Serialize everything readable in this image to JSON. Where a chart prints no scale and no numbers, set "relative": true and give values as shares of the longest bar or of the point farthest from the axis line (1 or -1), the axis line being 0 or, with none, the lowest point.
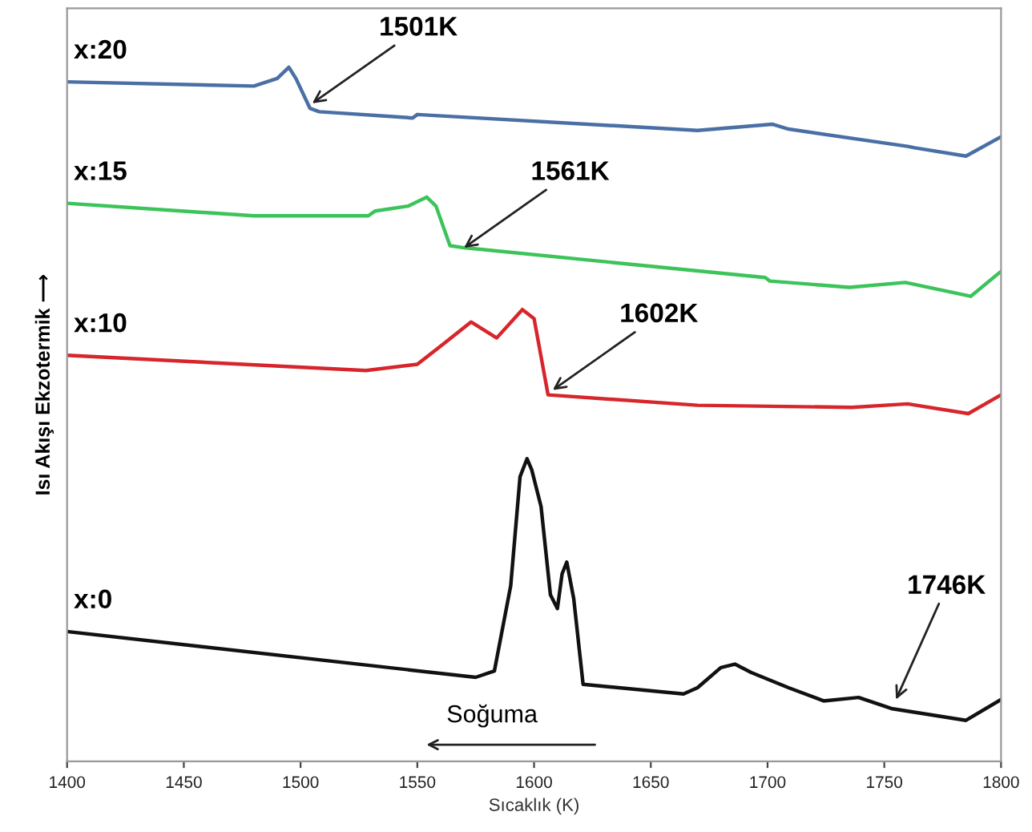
{
  "chart_data": {
    "type": "line",
    "relative": true,
    "xlabel": "Sıcaklık (K)",
    "ylabel": "Isı Akışı Ekzotermik ⟶",
    "xlim": [
      1400,
      1800
    ],
    "xticks": [
      1400,
      1450,
      1500,
      1550,
      1600,
      1650,
      1700,
      1750,
      1800
    ],
    "grid": false,
    "legend": false,
    "marker": "none",
    "line_style": "solid",
    "series": [
      {
        "name": "x:20",
        "color": "#4a6fa5",
        "x": [
          1400,
          1480,
          1490,
          1495,
          1498,
          1504,
          1508,
          1548,
          1550,
          1670,
          1702,
          1709,
          1760,
          1763,
          1785,
          1800
        ],
        "values": [
          0.979,
          0.973,
          0.984,
          1,
          0.984,
          0.941,
          0.936,
          0.927,
          0.932,
          0.909,
          0.918,
          0.911,
          0.886,
          0.884,
          0.872,
          0.9
        ]
      },
      {
        "name": "x:15",
        "color": "#3cc35a",
        "x": [
          1400,
          1480,
          1529,
          1532,
          1546,
          1554,
          1558,
          1564,
          1570,
          1699,
          1701,
          1735,
          1759,
          1787,
          1800
        ],
        "values": [
          0.804,
          0.786,
          0.786,
          0.793,
          0.8,
          0.813,
          0.8,
          0.743,
          0.74,
          0.697,
          0.692,
          0.683,
          0.69,
          0.67,
          0.706
        ]
      },
      {
        "name": "x:10",
        "color": "#d7262b",
        "x": [
          1400,
          1528,
          1550,
          1561,
          1573,
          1584,
          1595,
          1600,
          1606,
          1670,
          1736,
          1760,
          1786,
          1800
        ],
        "values": [
          0.585,
          0.563,
          0.572,
          0.601,
          0.633,
          0.61,
          0.651,
          0.638,
          0.528,
          0.513,
          0.51,
          0.515,
          0.501,
          0.528
        ]
      },
      {
        "name": "x:0",
        "color": "#111111",
        "x": [
          1400,
          1575,
          1583,
          1590,
          1594,
          1597,
          1599,
          1603,
          1607,
          1610,
          1612,
          1614,
          1617,
          1621,
          1664,
          1670,
          1680,
          1686,
          1693,
          1709,
          1724,
          1739,
          1753,
          1785,
          1800
        ],
        "values": [
          0.187,
          0.121,
          0.13,
          0.253,
          0.41,
          0.436,
          0.42,
          0.367,
          0.24,
          0.22,
          0.27,
          0.287,
          0.234,
          0.111,
          0.097,
          0.106,
          0.135,
          0.14,
          0.128,
          0.106,
          0.087,
          0.092,
          0.076,
          0.059,
          0.089
        ]
      }
    ],
    "annotations": [
      {
        "text": "1501K",
        "x": 1505,
        "y": 0.948
      },
      {
        "text": "1561K",
        "x": 1570,
        "y": 0.74
      },
      {
        "text": "1602K",
        "x": 1608,
        "y": 0.535
      },
      {
        "text": "1746K",
        "x": 1755,
        "y": 0.089
      },
      "Soğuma"
    ]
  }
}
